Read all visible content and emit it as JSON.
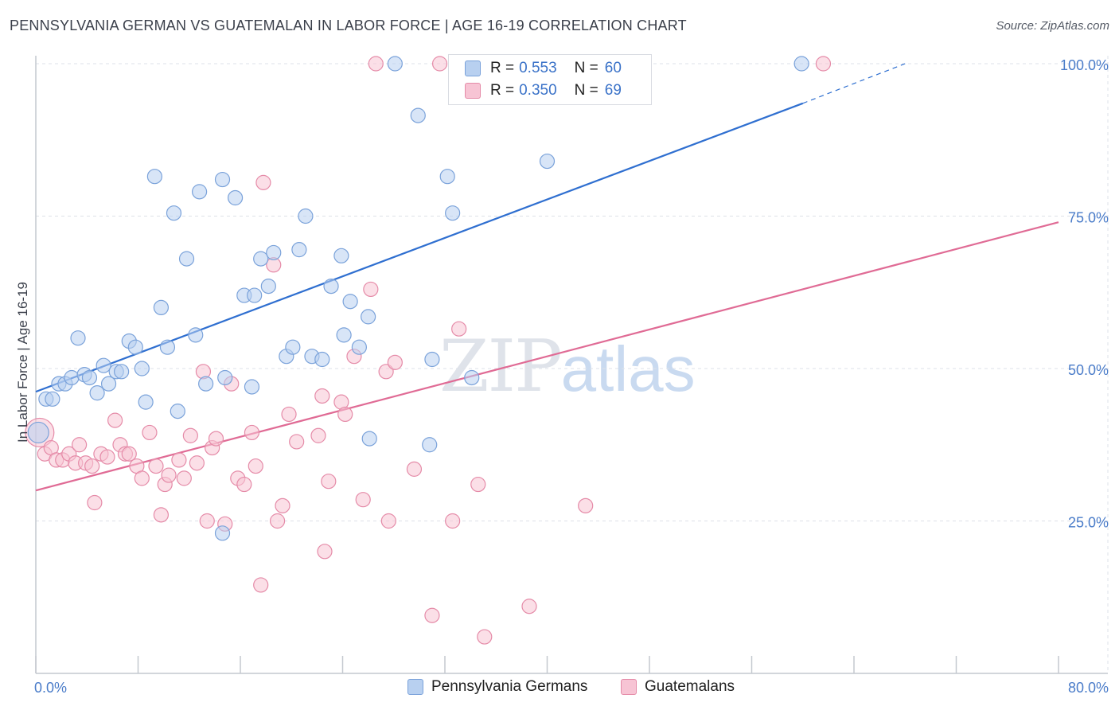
{
  "header": {
    "title": "PENNSYLVANIA GERMAN VS GUATEMALAN IN LABOR FORCE | AGE 16-19 CORRELATION CHART",
    "source": "Source: ZipAtlas.com"
  },
  "watermark": {
    "zip": "ZIP",
    "atlas": "atlas"
  },
  "legend": {
    "row1": {
      "r_label": "R =",
      "r_value": "0.553",
      "n_label": "N =",
      "n_value": "60"
    },
    "row2": {
      "r_label": "R =",
      "r_value": "0.350",
      "n_label": "N =",
      "n_value": "69"
    }
  },
  "bottom_legend": {
    "series1": "Pennsylvania Germans",
    "series2": "Guatemalans"
  },
  "colors": {
    "blue_fill": "#b8d0f0",
    "blue_stroke": "#7aa2da",
    "blue_line": "#2f6fd0",
    "pink_fill": "#f7c4d4",
    "pink_stroke": "#e58ba8",
    "pink_line": "#e06b95",
    "axis_text": "#4a7cc9"
  },
  "chart_data": {
    "type": "scatter",
    "title": "PENNSYLVANIA GERMAN VS GUATEMALAN IN LABOR FORCE | AGE 16-19 CORRELATION CHART",
    "xlabel": "",
    "ylabel": "In Labor Force | Age 16-19",
    "xlim": [
      0,
      80
    ],
    "ylim": [
      0,
      104
    ],
    "x_tick_labels": [
      "0.0%",
      "80.0%"
    ],
    "y_ticks": [
      25,
      50,
      75,
      100
    ],
    "y_tick_labels": [
      "25.0%",
      "50.0%",
      "75.0%",
      "100.0%"
    ],
    "grid": true,
    "legend_position": "top-center",
    "series": [
      {
        "name": "Pennsylvania Germans",
        "color": "#b8d0f0",
        "r": 0.553,
        "n": 60,
        "trend": {
          "x": [
            0,
            60
          ],
          "y": [
            46.2,
            93.5
          ],
          "dashed_to": [
            68,
            100
          ]
        },
        "points": [
          [
            0.2,
            39.5
          ],
          [
            0.8,
            45
          ],
          [
            1.3,
            45
          ],
          [
            1.8,
            47.5
          ],
          [
            2.3,
            47.5
          ],
          [
            2.8,
            48.5
          ],
          [
            3.3,
            55
          ],
          [
            3.8,
            49
          ],
          [
            4.2,
            48.5
          ],
          [
            4.8,
            46
          ],
          [
            5.3,
            50.5
          ],
          [
            5.7,
            47.5
          ],
          [
            6.3,
            49.5
          ],
          [
            6.7,
            49.5
          ],
          [
            7.3,
            54.5
          ],
          [
            7.8,
            53.5
          ],
          [
            8.3,
            50
          ],
          [
            8.6,
            44.5
          ],
          [
            9.3,
            81.5
          ],
          [
            9.8,
            60
          ],
          [
            10.3,
            53.5
          ],
          [
            10.8,
            75.5
          ],
          [
            11.1,
            43
          ],
          [
            11.8,
            68
          ],
          [
            12.5,
            55.5
          ],
          [
            12.8,
            79
          ],
          [
            13.3,
            47.5
          ],
          [
            14.6,
            81
          ],
          [
            14.8,
            48.5
          ],
          [
            15.6,
            78
          ],
          [
            16.3,
            62
          ],
          [
            17.1,
            62
          ],
          [
            16.9,
            47
          ],
          [
            17.6,
            68
          ],
          [
            18.2,
            63.5
          ],
          [
            18.6,
            69
          ],
          [
            19.6,
            52
          ],
          [
            20.1,
            53.5
          ],
          [
            20.6,
            69.5
          ],
          [
            21.1,
            75
          ],
          [
            21.6,
            52
          ],
          [
            22.4,
            51.5
          ],
          [
            23.1,
            63.5
          ],
          [
            23.9,
            68.5
          ],
          [
            24.1,
            55.5
          ],
          [
            24.6,
            61
          ],
          [
            25.3,
            53.5
          ],
          [
            26.0,
            58.5
          ],
          [
            26.1,
            38.5
          ],
          [
            28.1,
            100
          ],
          [
            29.9,
            91.5
          ],
          [
            31.0,
            51.5
          ],
          [
            30.8,
            37.5
          ],
          [
            32.2,
            81.5
          ],
          [
            32.6,
            75.5
          ],
          [
            34.1,
            48.5
          ],
          [
            37.6,
            100
          ],
          [
            40.0,
            84
          ],
          [
            59.9,
            100
          ],
          [
            14.6,
            23
          ]
        ]
      },
      {
        "name": "Guatemalans",
        "color": "#f7c4d4",
        "r": 0.35,
        "n": 69,
        "trend": {
          "x": [
            0,
            80
          ],
          "y": [
            30,
            74
          ]
        },
        "points": [
          [
            0.3,
            39.5
          ],
          [
            0.7,
            36
          ],
          [
            1.2,
            37
          ],
          [
            1.6,
            35
          ],
          [
            2.1,
            35
          ],
          [
            2.6,
            36
          ],
          [
            3.1,
            34.5
          ],
          [
            3.4,
            37.5
          ],
          [
            3.9,
            34.5
          ],
          [
            4.4,
            34
          ],
          [
            4.6,
            28
          ],
          [
            5.1,
            36
          ],
          [
            5.6,
            35.5
          ],
          [
            6.2,
            41.5
          ],
          [
            6.6,
            37.5
          ],
          [
            7.0,
            36
          ],
          [
            7.3,
            36
          ],
          [
            7.9,
            34
          ],
          [
            8.3,
            32
          ],
          [
            8.9,
            39.5
          ],
          [
            9.4,
            34
          ],
          [
            9.8,
            26
          ],
          [
            10.1,
            31
          ],
          [
            10.4,
            32.5
          ],
          [
            11.2,
            35
          ],
          [
            11.6,
            32
          ],
          [
            12.1,
            39
          ],
          [
            12.6,
            34.5
          ],
          [
            13.1,
            49.5
          ],
          [
            13.4,
            25
          ],
          [
            13.8,
            37
          ],
          [
            14.1,
            38.5
          ],
          [
            14.8,
            24.5
          ],
          [
            15.3,
            47.5
          ],
          [
            15.8,
            32
          ],
          [
            16.3,
            31
          ],
          [
            16.9,
            39.5
          ],
          [
            17.2,
            34
          ],
          [
            17.8,
            80.5
          ],
          [
            18.6,
            67
          ],
          [
            18.9,
            25
          ],
          [
            19.3,
            27.5
          ],
          [
            19.8,
            42.5
          ],
          [
            20.4,
            38
          ],
          [
            22.1,
            39
          ],
          [
            22.4,
            45.5
          ],
          [
            22.6,
            20
          ],
          [
            22.9,
            31.5
          ],
          [
            23.9,
            44.5
          ],
          [
            24.2,
            42.5
          ],
          [
            24.9,
            52
          ],
          [
            25.6,
            28.5
          ],
          [
            26.2,
            63
          ],
          [
            26.6,
            100
          ],
          [
            27.4,
            49.5
          ],
          [
            27.6,
            25
          ],
          [
            28.1,
            51
          ],
          [
            29.6,
            33.5
          ],
          [
            17.6,
            14.5
          ],
          [
            31.0,
            9.5
          ],
          [
            31.6,
            100
          ],
          [
            32.6,
            25
          ],
          [
            33.1,
            56.5
          ],
          [
            34.6,
            31
          ],
          [
            35.1,
            6
          ],
          [
            38.2,
            100
          ],
          [
            38.6,
            11
          ],
          [
            43.0,
            27.5
          ],
          [
            61.6,
            100
          ]
        ]
      }
    ]
  }
}
